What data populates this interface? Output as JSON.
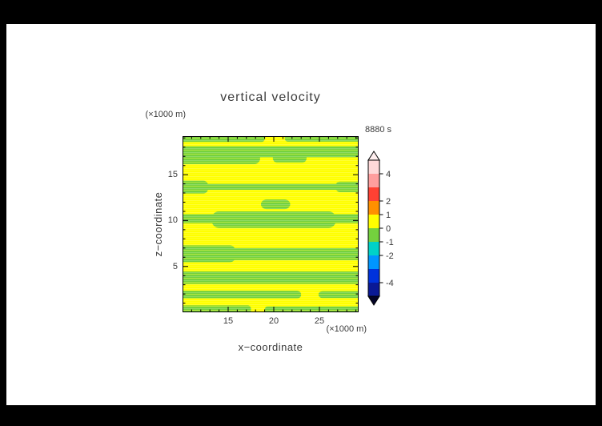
{
  "window": {
    "background": "#000000",
    "page_background": "#ffffff",
    "text_color": "#3a3a3a"
  },
  "chart_data": {
    "type": "filled-contour",
    "title": "vertical velocity",
    "time_label": "8880 s",
    "xlabel": "x−coordinate",
    "zlabel": "z−coordinate",
    "x_unit_label": "(×1000 m)",
    "z_unit_label": "(×1000 m)",
    "xlim": [
      10,
      29.3
    ],
    "zlim": [
      0,
      19.2
    ],
    "xticks": [
      15,
      20,
      25
    ],
    "zticks": [
      5,
      10,
      15
    ],
    "minor_tick_step": 1,
    "field_legend": {
      "yellow_value_range": [
        0,
        1
      ],
      "green_value_range": [
        -1,
        0
      ]
    },
    "colors": {
      "yellow": "#ffff00",
      "green": "#74d13e",
      "frame": "#000000"
    },
    "green_bands": [
      {
        "x0": 10.0,
        "x1": 19.0,
        "z0": 18.55,
        "z1": 19.2,
        "r": 4
      },
      {
        "x0": 21.2,
        "x1": 29.3,
        "z0": 18.6,
        "z1": 19.2,
        "r": 4
      },
      {
        "x0": 10.0,
        "x1": 29.3,
        "z0": 16.9,
        "z1": 18.1,
        "r": 6
      },
      {
        "x0": 10.0,
        "x1": 18.5,
        "z0": 16.15,
        "z1": 17.6,
        "r": 7
      },
      {
        "x0": 19.9,
        "x1": 23.6,
        "z0": 16.3,
        "z1": 17.3,
        "r": 6
      },
      {
        "x0": 10.0,
        "x1": 29.3,
        "z0": 13.35,
        "z1": 14.0,
        "r": 4
      },
      {
        "x0": 10.0,
        "x1": 12.8,
        "z0": 12.95,
        "z1": 14.35,
        "r": 6
      },
      {
        "x0": 26.8,
        "x1": 29.3,
        "z0": 13.1,
        "z1": 14.25,
        "r": 5
      },
      {
        "x0": 18.6,
        "x1": 21.8,
        "z0": 11.25,
        "z1": 12.3,
        "r": 7
      },
      {
        "x0": 10.0,
        "x1": 29.3,
        "z0": 9.7,
        "z1": 10.7,
        "r": 5
      },
      {
        "x0": 13.2,
        "x1": 26.8,
        "z0": 9.2,
        "z1": 11.0,
        "r": 9
      },
      {
        "x0": 10.0,
        "x1": 29.3,
        "z0": 5.7,
        "z1": 7.0,
        "r": 6
      },
      {
        "x0": 10.0,
        "x1": 15.8,
        "z0": 5.45,
        "z1": 7.3,
        "r": 7
      },
      {
        "x0": 10.0,
        "x1": 29.3,
        "z0": 3.1,
        "z1": 4.45,
        "r": 6
      },
      {
        "x0": 10.0,
        "x1": 23.0,
        "z0": 1.5,
        "z1": 2.35,
        "r": 5
      },
      {
        "x0": 24.9,
        "x1": 29.3,
        "z0": 1.55,
        "z1": 2.3,
        "r": 5
      },
      {
        "x0": 10.0,
        "x1": 17.5,
        "z0": 0.0,
        "z1": 0.75,
        "r": 4
      },
      {
        "x0": 19.0,
        "x1": 29.3,
        "z0": 0.0,
        "z1": 0.65,
        "r": 4
      }
    ],
    "colorbar": {
      "range": [
        -5,
        5
      ],
      "labels": [
        4,
        2,
        1,
        0,
        -1,
        -2,
        -4
      ],
      "segments": [
        {
          "from": 4,
          "to": 5,
          "color": "#ffd9d9"
        },
        {
          "from": 3,
          "to": 4,
          "color": "#ff9e9e"
        },
        {
          "from": 2,
          "to": 3,
          "color": "#ff4133"
        },
        {
          "from": 1,
          "to": 2,
          "color": "#ff9000"
        },
        {
          "from": 0,
          "to": 1,
          "color": "#ffff00"
        },
        {
          "from": -1,
          "to": 0,
          "color": "#74d13e"
        },
        {
          "from": -2,
          "to": -1,
          "color": "#00d2c8"
        },
        {
          "from": -3,
          "to": -2,
          "color": "#0096ff"
        },
        {
          "from": -4,
          "to": -3,
          "color": "#0032dc"
        },
        {
          "from": -5,
          "to": -4,
          "color": "#0a1996"
        }
      ],
      "over_arrow_color": "#ffefef",
      "under_arrow_color": "#050528"
    }
  }
}
